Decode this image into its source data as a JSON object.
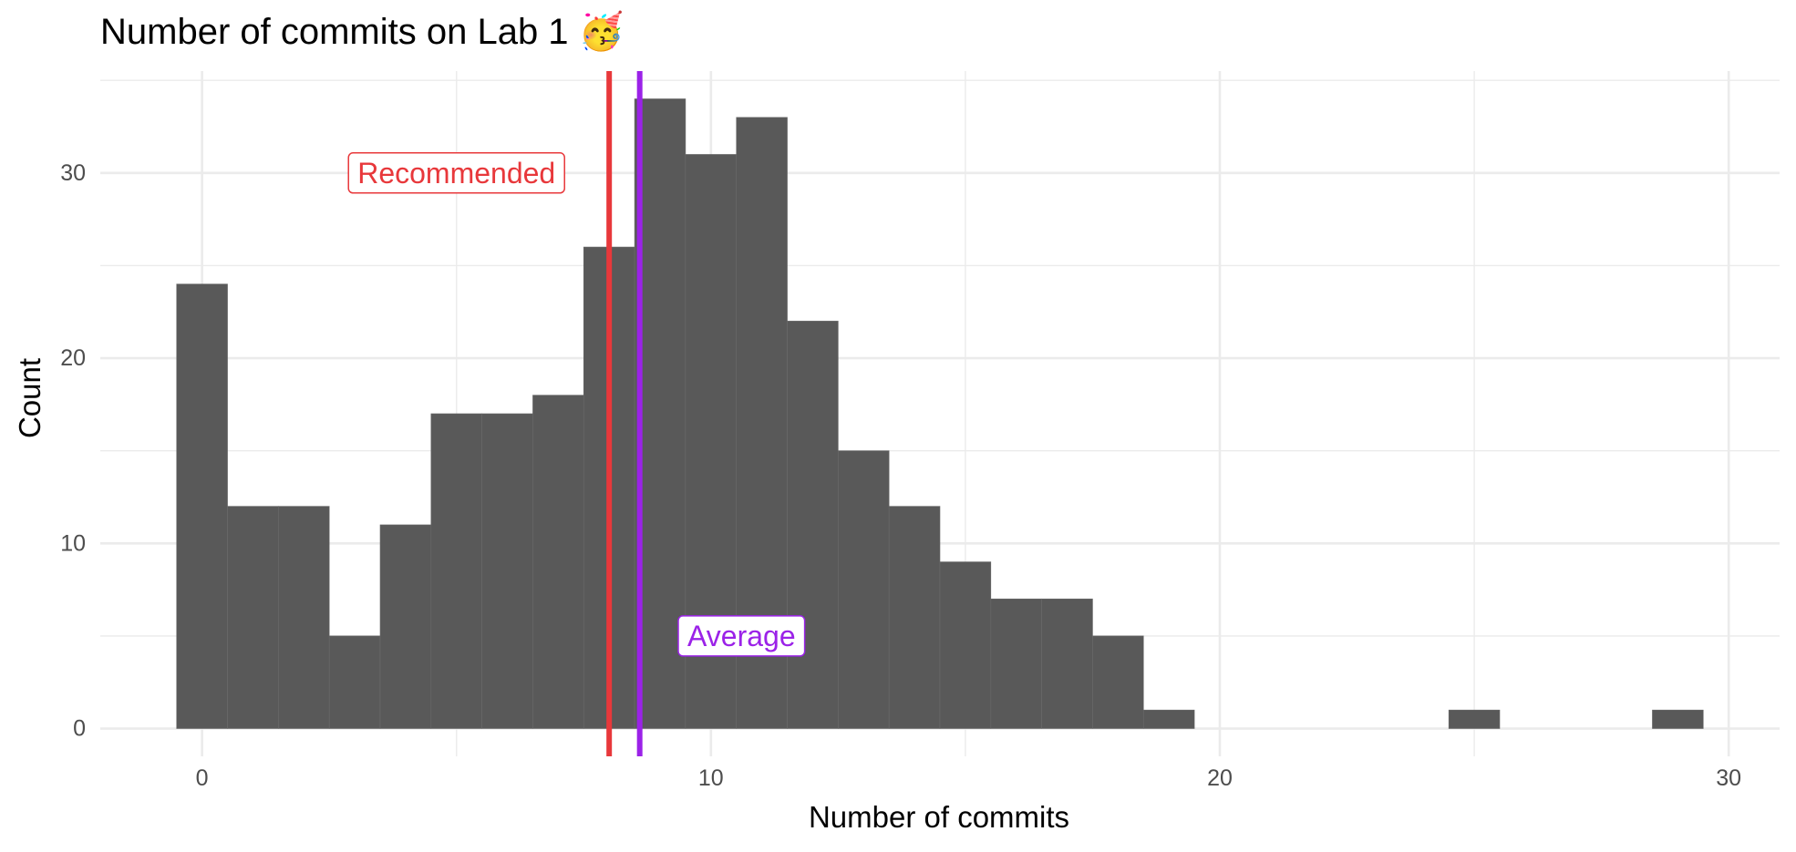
{
  "chart_data": {
    "type": "bar",
    "title": "Number of commits on Lab 1",
    "title_emoji": "🥳",
    "xlabel": "Number of commits",
    "ylabel": "Count",
    "xlim": [
      -2,
      31
    ],
    "ylim": [
      -1.5,
      35.5
    ],
    "x_ticks": [
      0,
      10,
      20,
      30
    ],
    "y_ticks": [
      0,
      10,
      20,
      30
    ],
    "grid": true,
    "bin_width": 1,
    "bars": [
      {
        "x": 0,
        "count": 24
      },
      {
        "x": 1,
        "count": 12
      },
      {
        "x": 2,
        "count": 12
      },
      {
        "x": 3,
        "count": 5
      },
      {
        "x": 4,
        "count": 11
      },
      {
        "x": 5,
        "count": 17
      },
      {
        "x": 6,
        "count": 17
      },
      {
        "x": 7,
        "count": 18
      },
      {
        "x": 8,
        "count": 26
      },
      {
        "x": 9,
        "count": 34
      },
      {
        "x": 10,
        "count": 31
      },
      {
        "x": 11,
        "count": 33
      },
      {
        "x": 12,
        "count": 22
      },
      {
        "x": 13,
        "count": 15
      },
      {
        "x": 14,
        "count": 12
      },
      {
        "x": 15,
        "count": 9
      },
      {
        "x": 16,
        "count": 7
      },
      {
        "x": 17,
        "count": 7
      },
      {
        "x": 18,
        "count": 5
      },
      {
        "x": 19,
        "count": 1
      },
      {
        "x": 25,
        "count": 1
      },
      {
        "x": 29,
        "count": 1
      }
    ],
    "bar_color": "#595959",
    "reference_lines": [
      {
        "name": "recommended-line",
        "label": "Recommended",
        "x": 8,
        "color": "#e8383b",
        "label_x": 5,
        "label_y": 30
      },
      {
        "name": "average-line",
        "label": "Average",
        "x": 8.6,
        "color": "#9b22e8",
        "label_x": 10.6,
        "label_y": 5
      }
    ]
  }
}
